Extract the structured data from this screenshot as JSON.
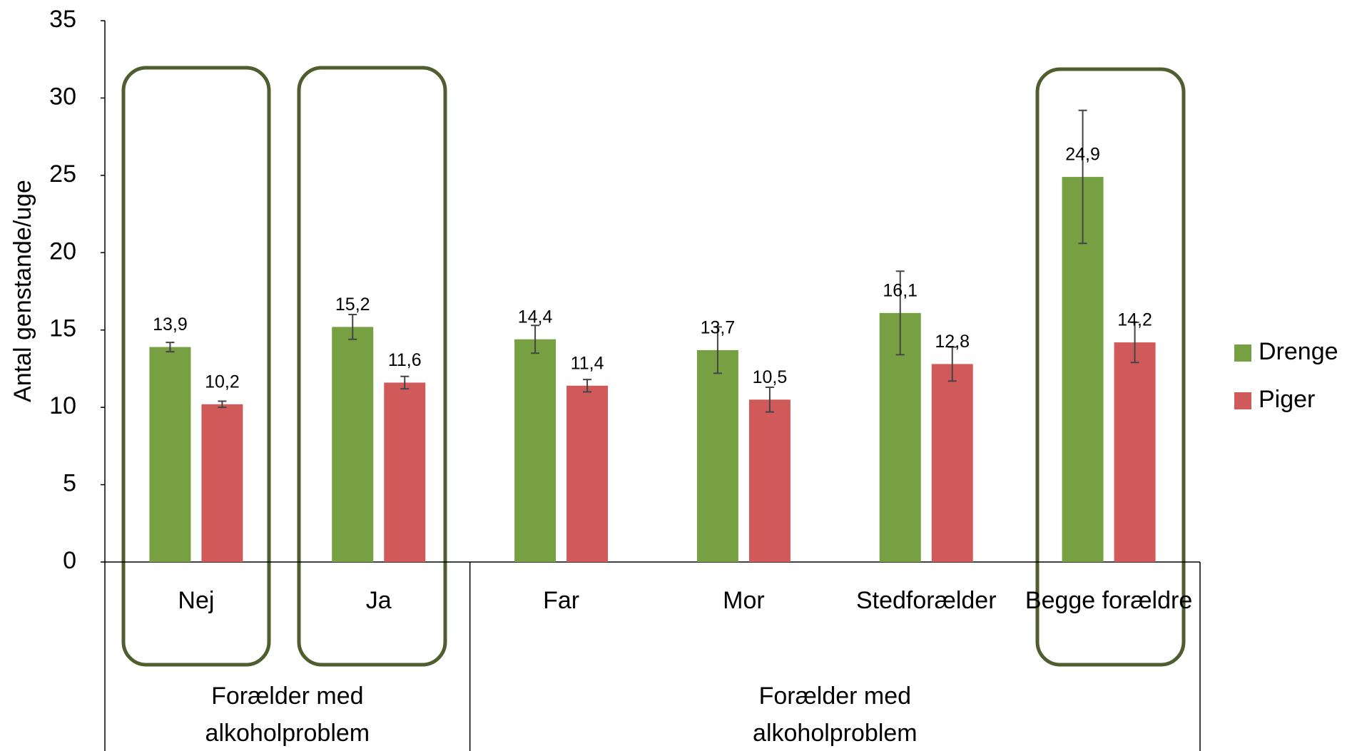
{
  "chart_data": {
    "type": "bar",
    "y_label": "Antal genstande/uge",
    "groups": [
      {
        "label": "Forælder med alkoholproblem",
        "categories": [
          "Nej",
          "Ja"
        ]
      },
      {
        "label": "Forælder med alkoholproblem",
        "categories": [
          "Far",
          "Mor",
          "Stedforælder",
          "Begge forældre"
        ]
      }
    ],
    "series": [
      {
        "name": "Drenge",
        "color": "#77a043",
        "values": [
          13.9,
          15.2,
          14.4,
          13.7,
          16.1,
          24.9
        ],
        "value_labels": [
          "13,9",
          "15,2",
          "14,4",
          "13,7",
          "16,1",
          "24,9"
        ],
        "errors": [
          0.3,
          0.8,
          0.9,
          1.5,
          2.7,
          4.3
        ]
      },
      {
        "name": "Piger",
        "color": "#d05a5a",
        "values": [
          10.2,
          11.6,
          11.4,
          10.5,
          12.8,
          14.2
        ],
        "value_labels": [
          "10,2",
          "11,6",
          "11,4",
          "10,5",
          "12,8",
          "14,2"
        ],
        "errors": [
          0.2,
          0.4,
          0.4,
          0.8,
          1.1,
          1.3
        ]
      }
    ],
    "ylim": [
      0,
      35
    ],
    "yticks": [
      0,
      5,
      10,
      15,
      20,
      25,
      30,
      35
    ],
    "grid": false,
    "legend": "right"
  }
}
